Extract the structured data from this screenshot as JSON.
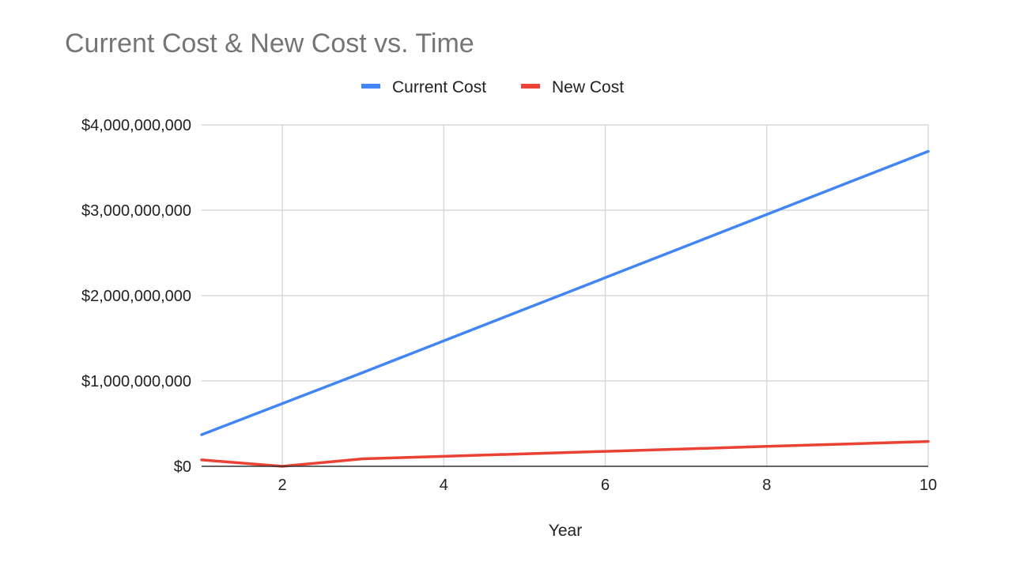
{
  "chart_data": {
    "type": "line",
    "title": "Current Cost & New Cost vs. Time",
    "xlabel": "Year",
    "ylabel": "",
    "xlim": [
      1,
      10
    ],
    "ylim": [
      0,
      4000000000
    ],
    "x_ticks": [
      2,
      4,
      6,
      8,
      10
    ],
    "y_ticks": [
      0,
      1000000000,
      2000000000,
      3000000000,
      4000000000
    ],
    "y_tick_labels": [
      "$0",
      "$1,000,000,000",
      "$2,000,000,000",
      "$3,000,000,000",
      "$4,000,000,000"
    ],
    "x": [
      1,
      2,
      3,
      4,
      5,
      6,
      7,
      8,
      9,
      10
    ],
    "series": [
      {
        "name": "Current Cost",
        "color": "#4285f4",
        "values": [
          370000000,
          735000000,
          1100000000,
          1470000000,
          1840000000,
          2210000000,
          2580000000,
          2950000000,
          3320000000,
          3690000000
        ]
      },
      {
        "name": "New Cost",
        "color": "#ea4335",
        "values": [
          75000000,
          0,
          88000000,
          117000000,
          146000000,
          175000000,
          204000000,
          233000000,
          262000000,
          291000000
        ]
      }
    ],
    "grid": true,
    "legend_position": "top-center"
  }
}
